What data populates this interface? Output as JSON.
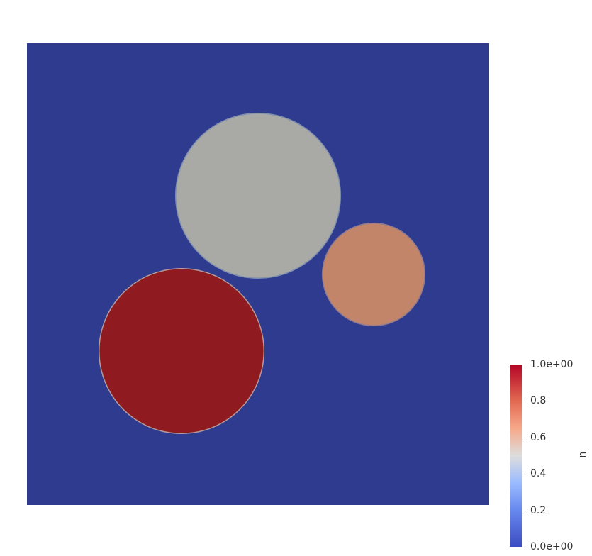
{
  "scene": {
    "background_color": "#ffffff",
    "domain_color": "#2f3b8f",
    "circles": [
      {
        "name": "gray-circle",
        "u_value": 0.48,
        "color": "#a9a9a5"
      },
      {
        "name": "salmon-circle",
        "u_value": 0.68,
        "color": "#c2856a"
      },
      {
        "name": "red-circle",
        "u_value": 1.0,
        "color": "#8f1b21"
      }
    ]
  },
  "colorbar": {
    "title": "u",
    "colormap": "cool-to-warm",
    "range": [
      0.0,
      1.0
    ],
    "ticks": [
      {
        "value": 1.0,
        "label": "1.0e+00"
      },
      {
        "value": 0.8,
        "label": "0.8"
      },
      {
        "value": 0.6,
        "label": "0.6"
      },
      {
        "value": 0.4,
        "label": "0.4"
      },
      {
        "value": 0.2,
        "label": "0.2"
      },
      {
        "value": 0.0,
        "label": "0.0e+00"
      }
    ]
  }
}
